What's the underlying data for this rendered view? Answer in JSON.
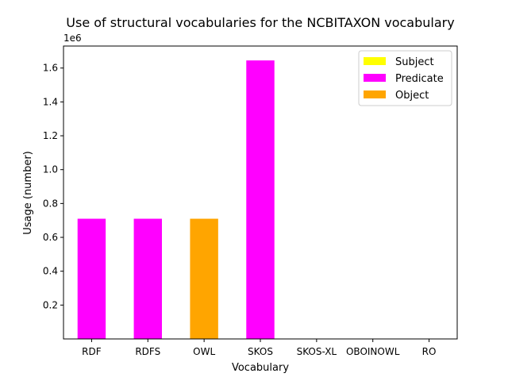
{
  "chart_data": {
    "type": "bar",
    "title": "Use of structural vocabularies for the NCBITAXON vocabulary",
    "xlabel": "Vocabulary",
    "ylabel": "Usage (number)",
    "y_offset_label": "1e6",
    "ylim": [
      0,
      1.73
    ],
    "y_ticks": [
      "0.2",
      "0.4",
      "0.6",
      "0.8",
      "1.0",
      "1.2",
      "1.4",
      "1.6"
    ],
    "y_tick_values": [
      0.2,
      0.4,
      0.6,
      0.8,
      1.0,
      1.2,
      1.4,
      1.6
    ],
    "categories": [
      "RDF",
      "RDFS",
      "OWL",
      "SKOS",
      "SKOS-XL",
      "OBOINOWL",
      "RO"
    ],
    "series": [
      {
        "name": "Subject",
        "color": "#ffff00",
        "values": [
          0,
          0,
          0,
          0,
          0,
          0,
          0
        ]
      },
      {
        "name": "Predicate",
        "color": "#ff00ff",
        "values": [
          0.71,
          0.71,
          0,
          1.645,
          0,
          0,
          0
        ]
      },
      {
        "name": "Object",
        "color": "#ffa500",
        "values": [
          0,
          0,
          0.71,
          0,
          0,
          0,
          0
        ]
      }
    ],
    "legend_position": "top-right",
    "grid": false
  }
}
